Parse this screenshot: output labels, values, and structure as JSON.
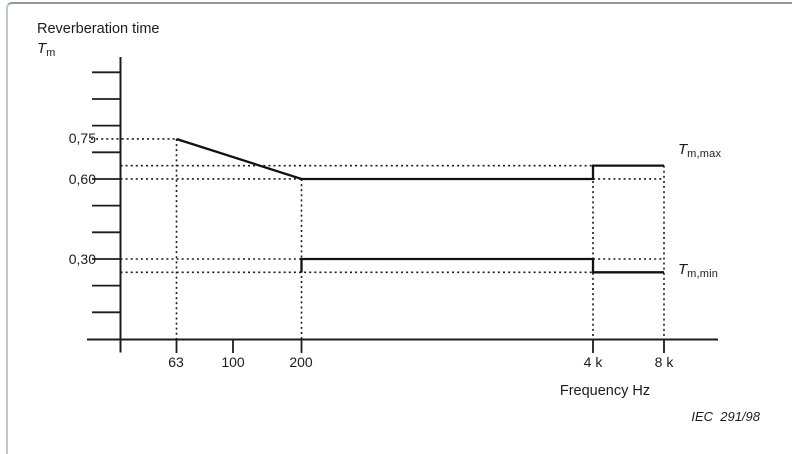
{
  "figure": {
    "caption": "IEC  291/98"
  },
  "chart_data": {
    "type": "line",
    "title": "Reverberation time",
    "y_symbol": {
      "base": "T",
      "sub": "m"
    },
    "xlabel": "Frequency Hz",
    "x_scale": "log",
    "grid": "dotted-guides-only",
    "legend_position": "right-of-curves",
    "xlim_hz": [
      40,
      11000
    ],
    "ylim": [
      0,
      1.05
    ],
    "x_ticks": [
      {
        "value": 63,
        "label": "63"
      },
      {
        "value": 100,
        "label": "100"
      },
      {
        "value": 200,
        "label": "200"
      },
      {
        "value": 4000,
        "label": "4 k"
      },
      {
        "value": 8000,
        "label": "8 k"
      }
    ],
    "y_ticks_minor": [
      0.1,
      0.2,
      0.3,
      0.4,
      0.5,
      0.6,
      0.7,
      0.8,
      0.9,
      1.0
    ],
    "y_ticks_labeled": [
      {
        "value": 0.75,
        "label": "0,75"
      },
      {
        "value": 0.6,
        "label": "0,60"
      },
      {
        "value": 0.3,
        "label": "0,30"
      }
    ],
    "series": [
      {
        "name": "Tm,max",
        "label_base": "T",
        "label_sub": "m,max",
        "points": [
          [
            63,
            0.75
          ],
          [
            200,
            0.6
          ],
          [
            4000,
            0.6
          ],
          [
            4000,
            0.65
          ],
          [
            8000,
            0.65
          ]
        ]
      },
      {
        "name": "Tm,min",
        "label_base": "T",
        "label_sub": "m,min",
        "points": [
          [
            200,
            0.25
          ],
          [
            200,
            0.3
          ],
          [
            4000,
            0.3
          ],
          [
            4000,
            0.25
          ],
          [
            8000,
            0.25
          ]
        ]
      }
    ],
    "guides": {
      "horizontal": [
        {
          "y": 0.75,
          "from": "label",
          "to": 63
        },
        {
          "y": 0.65,
          "from": "axis",
          "to": 4000
        },
        {
          "y": 0.6,
          "from": "axis",
          "to": 200
        },
        {
          "y": 0.6,
          "from": 4000,
          "to": 8000
        },
        {
          "y": 0.3,
          "from": "axis",
          "to": 200
        },
        {
          "y": 0.3,
          "from": 4000,
          "to": 8000
        },
        {
          "y": 0.25,
          "from": "axis",
          "to": 4000
        }
      ],
      "vertical": [
        {
          "x": 63,
          "top": 0.75
        },
        {
          "x": 200,
          "top": 0.6
        },
        {
          "x": 4000,
          "top": 0.65
        },
        {
          "x": 8000,
          "top": 0.65
        }
      ]
    }
  }
}
